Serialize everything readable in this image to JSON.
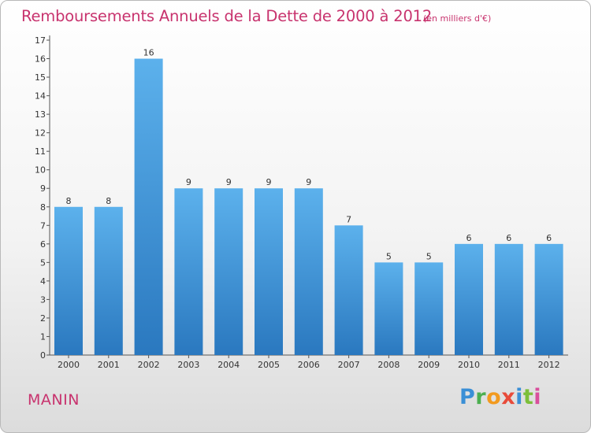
{
  "chart_data": {
    "type": "bar",
    "title": "Remboursements Annuels de la Dette de 2000 à 2012",
    "subtitle": "(en milliers d'€)",
    "categories": [
      "2000",
      "2001",
      "2002",
      "2003",
      "2004",
      "2005",
      "2006",
      "2007",
      "2008",
      "2009",
      "2010",
      "2011",
      "2012"
    ],
    "values": [
      8,
      8,
      16,
      9,
      9,
      9,
      9,
      7,
      5,
      5,
      6,
      6,
      6
    ],
    "ylim": [
      0,
      17
    ],
    "yticks": [
      0,
      1,
      2,
      3,
      4,
      5,
      6,
      7,
      8,
      9,
      10,
      11,
      12,
      13,
      14,
      15,
      16,
      17
    ],
    "xlabel": "",
    "ylabel": "",
    "grid": false,
    "bar_color": "#4a9fe0"
  },
  "footer": {
    "commune": "MANIN",
    "logo": "Proxiti"
  },
  "colors": {
    "title": "#c8336e",
    "bar_top": "#5cb1ec",
    "bar_bottom": "#2a78bf"
  }
}
